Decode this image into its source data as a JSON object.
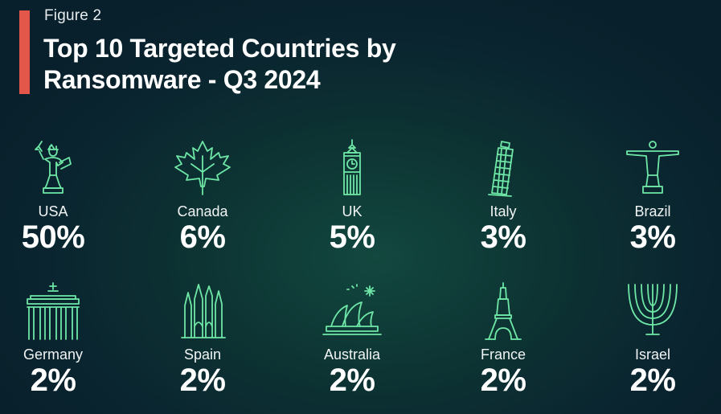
{
  "figure_label": "Figure 2",
  "title": "Top 10 Targeted Countries by Ransomware - Q3 2024",
  "colors": {
    "accent": "#e2574a",
    "icon": "#6ee7a6",
    "background": "#0d3433"
  },
  "chart_data": {
    "type": "table",
    "title": "Top 10 Targeted Countries by Ransomware - Q3 2024",
    "categories": [
      "USA",
      "Canada",
      "UK",
      "Italy",
      "Brazil",
      "Germany",
      "Spain",
      "Australia",
      "France",
      "Israel"
    ],
    "values": [
      50,
      6,
      5,
      3,
      3,
      2,
      2,
      2,
      2,
      2
    ],
    "labels": [
      "50%",
      "6%",
      "5%",
      "3%",
      "3%",
      "2%",
      "2%",
      "2%",
      "2%",
      "2%"
    ],
    "icons": [
      "statue-of-liberty-icon",
      "maple-leaf-icon",
      "big-ben-icon",
      "leaning-tower-icon",
      "christ-redeemer-icon",
      "brandenburg-gate-icon",
      "sagrada-familia-icon",
      "opera-house-icon",
      "eiffel-tower-icon",
      "menorah-icon"
    ],
    "unit": "%"
  }
}
